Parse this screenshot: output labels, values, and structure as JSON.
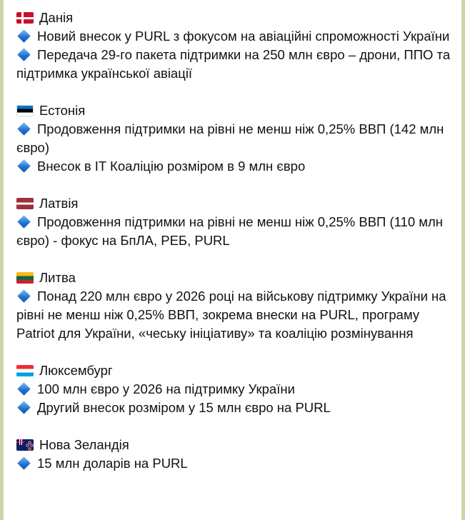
{
  "colors": {
    "chat_background": "#c9d7a8",
    "bubble": "#ffffff",
    "bullet": "#1f6fd1"
  },
  "sections": [
    {
      "flag": "denmark-flag-icon",
      "country": "Данія",
      "items": [
        "Новий внесок у PURL з фокусом на авіаційні спроможності України",
        "Передача 29-го пакета підтримки на 250 млн євро – дрони, ППО та підтримка української авіації"
      ]
    },
    {
      "flag": "estonia-flag-icon",
      "country": "Естонія",
      "items": [
        "Продовження підтримки на рівні не менш ніж 0,25% ВВП (142 млн євро)",
        "Внесок в IT Коаліцію розміром в 9 млн євро"
      ]
    },
    {
      "flag": "latvia-flag-icon",
      "country": "Латвія",
      "items": [
        "Продовження підтримки на рівні не менш ніж 0,25% ВВП (110 млн євро) - фокус на БпЛА, РЕБ, PURL"
      ]
    },
    {
      "flag": "lithuania-flag-icon",
      "country": "Литва",
      "items": [
        "Понад 220 млн євро у 2026 році на військову підтримку України на рівні не менш ніж 0,25% ВВП, зокрема внески на PURL, програму Patriot для України, «чеську ініціативу» та коаліцію розмінування"
      ]
    },
    {
      "flag": "luxembourg-flag-icon",
      "country": "Люксембург",
      "items": [
        "100 млн євро у 2026 на підтримку України",
        "Другий внесок розміром у 15 млн євро на PURL"
      ]
    },
    {
      "flag": "new-zealand-flag-icon",
      "country": "Нова Зеландія",
      "items": [
        "15 млн доларів на PURL"
      ]
    }
  ]
}
